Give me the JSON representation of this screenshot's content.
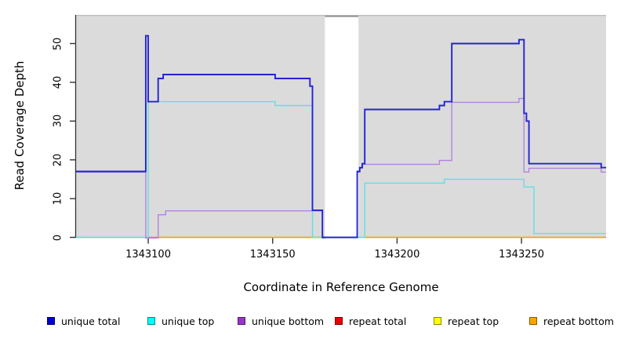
{
  "chart_data": {
    "type": "line",
    "title": "",
    "xlabel": "Coordinate in Reference Genome",
    "ylabel": "Read Coverage Depth",
    "xlim": [
      1343071,
      1343284
    ],
    "ylim": [
      0,
      57
    ],
    "x_ticks": [
      1343100,
      1343150,
      1343200,
      1343250
    ],
    "y_ticks": [
      0,
      10,
      20,
      30,
      40,
      50
    ],
    "grid": false,
    "plot_bg_color": "#DBDBDB",
    "gap_region": {
      "x0": 1343171,
      "x1": 1343184.5
    },
    "legend": [
      {
        "label": "unique total",
        "color": "#0000CC"
      },
      {
        "label": "unique top",
        "color": "#00FFFF"
      },
      {
        "label": "unique bottom",
        "color": "#9933CC"
      },
      {
        "label": "repeat total",
        "color": "#E60000"
      },
      {
        "label": "repeat top",
        "color": "#FFFF00"
      },
      {
        "label": "repeat bottom",
        "color": "#FFA500"
      }
    ],
    "series": [
      {
        "name": "repeat top",
        "color": "#8FD78F",
        "width": 1.6,
        "dy": 0,
        "segments": [
          [
            [
              1343071,
              0
            ],
            [
              1343099,
              0
            ]
          ],
          [
            [
              1343184,
              0
            ],
            [
              1343187,
              0
            ]
          ]
        ]
      },
      {
        "name": "repeat total",
        "color": "#E0708C",
        "width": 1.6,
        "dy": 0,
        "segments": [
          [
            [
              1343099,
              0
            ],
            [
              1343104,
              0
            ]
          ]
        ]
      },
      {
        "name": "repeat bottom",
        "color": "#FFA500",
        "width": 1.8,
        "dy": 0,
        "segments": [
          [
            [
              1343104,
              0
            ],
            [
              1343171,
              0
            ]
          ],
          [
            [
              1343187,
              0
            ],
            [
              1343284,
              0
            ]
          ]
        ]
      },
      {
        "name": "unique top",
        "color": "#5FE0E6",
        "width": 1.4,
        "dy": 0,
        "segments": [
          [
            [
              1343071,
              0
            ],
            [
              1343100,
              0
            ],
            [
              1343100,
              35
            ],
            [
              1343151,
              35
            ],
            [
              1343151,
              34
            ],
            [
              1343166,
              34
            ],
            [
              1343166,
              0
            ],
            [
              1343171,
              0
            ]
          ],
          [
            [
              1343184,
              0
            ],
            [
              1343187,
              0
            ],
            [
              1343187,
              14
            ],
            [
              1343219,
              14
            ],
            [
              1343219,
              15
            ],
            [
              1343251,
              15
            ],
            [
              1343251,
              13
            ],
            [
              1343255,
              13
            ],
            [
              1343255,
              1
            ],
            [
              1343284,
              1
            ]
          ]
        ]
      },
      {
        "name": "unique bottom",
        "color": "#B584DB",
        "width": 1.4,
        "dy": 0.8,
        "segments": [
          [
            [
              1343071,
              17
            ],
            [
              1343099,
              17
            ],
            [
              1343099,
              0
            ],
            [
              1343104,
              0
            ],
            [
              1343104,
              6
            ],
            [
              1343107,
              6
            ],
            [
              1343107,
              7
            ],
            [
              1343170,
              7
            ],
            [
              1343170,
              0
            ],
            [
              1343171,
              0
            ]
          ],
          [
            [
              1343184,
              0
            ],
            [
              1343184,
              17
            ],
            [
              1343185,
              17
            ],
            [
              1343185,
              18
            ],
            [
              1343186,
              18
            ],
            [
              1343186,
              19
            ],
            [
              1343217,
              19
            ],
            [
              1343217,
              20
            ],
            [
              1343222,
              20
            ],
            [
              1343222,
              35
            ],
            [
              1343249,
              35
            ],
            [
              1343249,
              36
            ],
            [
              1343251,
              36
            ],
            [
              1343251,
              17
            ],
            [
              1343253,
              17
            ],
            [
              1343253,
              18
            ],
            [
              1343282,
              18
            ],
            [
              1343282,
              17
            ],
            [
              1343284,
              17
            ]
          ]
        ]
      },
      {
        "name": "unique total",
        "color": "#2323D2",
        "width": 1.9,
        "dy": 0,
        "segments": [
          [
            [
              1343071,
              17
            ],
            [
              1343099,
              17
            ],
            [
              1343099,
              52
            ],
            [
              1343100,
              52
            ],
            [
              1343100,
              35
            ],
            [
              1343104,
              35
            ],
            [
              1343104,
              41
            ],
            [
              1343106,
              41
            ],
            [
              1343106,
              42
            ],
            [
              1343151,
              42
            ],
            [
              1343151,
              41
            ],
            [
              1343165,
              41
            ],
            [
              1343165,
              39
            ],
            [
              1343166,
              39
            ],
            [
              1343166,
              7
            ],
            [
              1343170,
              7
            ],
            [
              1343170,
              0
            ],
            [
              1343184,
              0
            ],
            [
              1343184,
              17
            ],
            [
              1343185,
              17
            ],
            [
              1343185,
              18
            ],
            [
              1343186,
              18
            ],
            [
              1343186,
              19
            ],
            [
              1343187,
              19
            ],
            [
              1343187,
              33
            ],
            [
              1343217,
              33
            ],
            [
              1343217,
              34
            ],
            [
              1343219,
              34
            ],
            [
              1343219,
              35
            ],
            [
              1343222,
              35
            ],
            [
              1343222,
              50
            ],
            [
              1343249,
              50
            ],
            [
              1343249,
              51
            ],
            [
              1343251,
              51
            ],
            [
              1343251,
              32
            ],
            [
              1343252,
              32
            ],
            [
              1343252,
              30
            ],
            [
              1343253,
              30
            ],
            [
              1343253,
              19
            ],
            [
              1343282,
              19
            ],
            [
              1343282,
              18
            ],
            [
              1343284,
              18
            ]
          ]
        ]
      }
    ]
  }
}
